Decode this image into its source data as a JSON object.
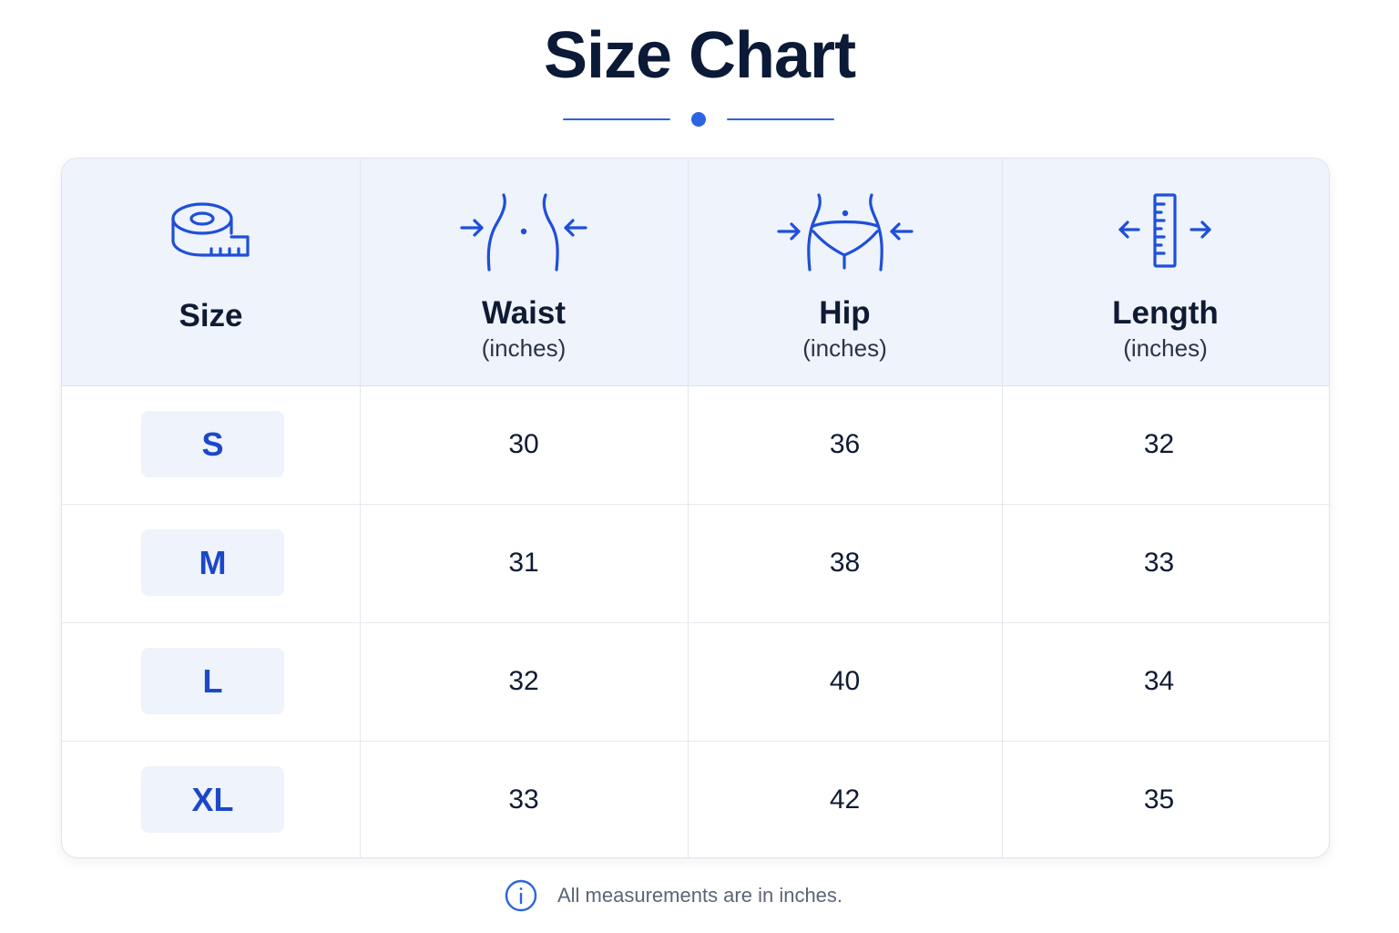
{
  "page": {
    "title": "Size Chart"
  },
  "table": {
    "headers": [
      {
        "label": "Size",
        "unit": "",
        "icon": "measuring-tape-icon"
      },
      {
        "label": "Waist",
        "unit": "(inches)",
        "icon": "waist-measure-icon"
      },
      {
        "label": "Hip",
        "unit": "(inches)",
        "icon": "hip-measure-icon"
      },
      {
        "label": "Length",
        "unit": "(inches)",
        "icon": "length-ruler-icon"
      }
    ],
    "rows": [
      {
        "size": "S",
        "waist": "30",
        "hip": "36",
        "length": "32"
      },
      {
        "size": "M",
        "waist": "31",
        "hip": "38",
        "length": "33"
      },
      {
        "size": "L",
        "waist": "32",
        "hip": "40",
        "length": "34"
      },
      {
        "size": "XL",
        "waist": "33",
        "hip": "42",
        "length": "35"
      }
    ]
  },
  "footer": {
    "note": "All measurements are in inches.",
    "icon": "info-icon"
  },
  "colors": {
    "accent": "#2c63e0",
    "badge_text": "#1c47c9",
    "header_bg": "#eef3fc",
    "title": "#0b1a36"
  }
}
